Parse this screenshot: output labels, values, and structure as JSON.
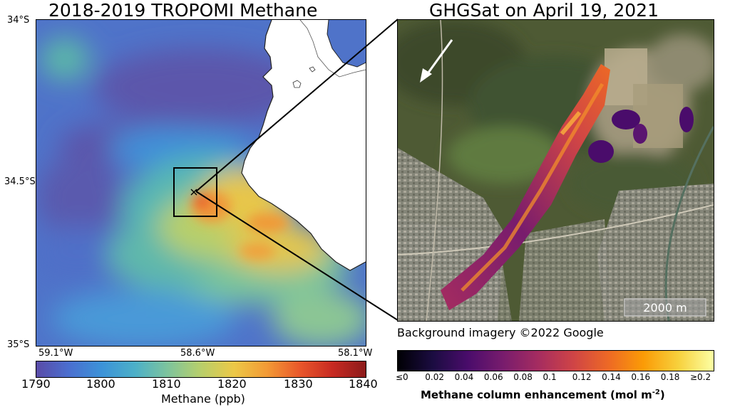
{
  "left_panel": {
    "title": "2018-2019 TROPOMI Methane",
    "lat_ticks": [
      "34°S",
      "34.5°S",
      "35°S"
    ],
    "lon_ticks": [
      "59.1°W",
      "58.6°W",
      "58.1°W"
    ],
    "colorbar": {
      "ticks": [
        "1790",
        "1800",
        "1810",
        "1820",
        "1830",
        "1840"
      ],
      "label": "Methane (ppb)",
      "range": [
        1790,
        1840
      ],
      "colors": [
        "#5a4ca8",
        "#4a6fd0",
        "#3c93d8",
        "#4cb0c8",
        "#7ec49c",
        "#b8cf6a",
        "#ecc847",
        "#f39a35",
        "#e9572b",
        "#c72a22",
        "#8c1b1b"
      ]
    }
  },
  "right_panel": {
    "title": "GHGSat on April 19, 2021",
    "scale_bar": "2000 m",
    "credit": "Background imagery ©2022 Google",
    "colorbar": {
      "ticks": [
        "≤0",
        "0.02",
        "0.04",
        "0.06",
        "0.08",
        "0.1",
        "0.12",
        "0.14",
        "0.16",
        "0.18",
        "≥0.2"
      ],
      "label_main": "Methane column enhancement (mol m",
      "label_sup": "-2",
      "label_end": ")",
      "colors": [
        "#000004",
        "#1b0c41",
        "#4a0c6b",
        "#781c6d",
        "#a52c60",
        "#cf4446",
        "#ed6925",
        "#fb9b06",
        "#f7d13d",
        "#fcffa4"
      ]
    }
  }
}
